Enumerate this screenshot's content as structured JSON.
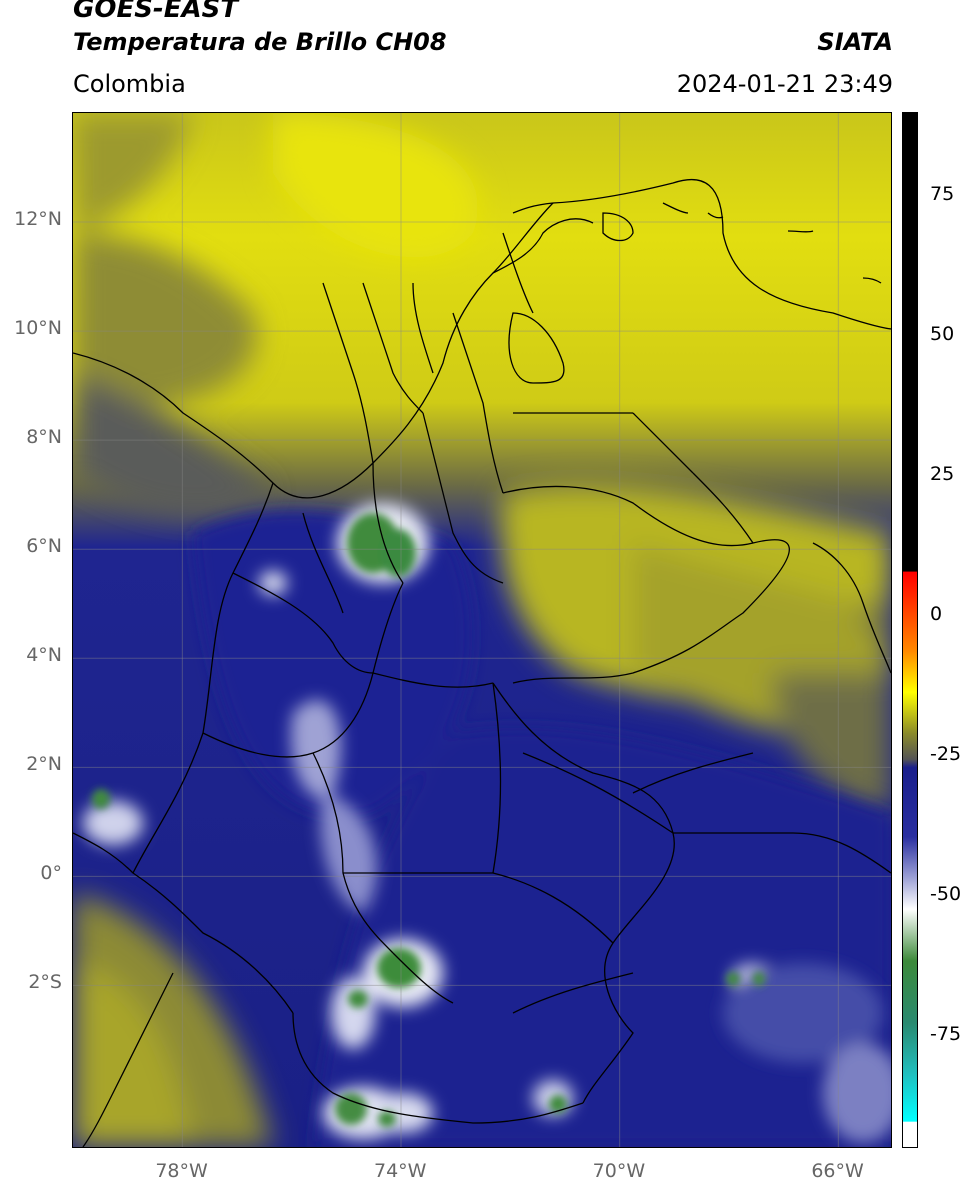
{
  "header": {
    "satellite": "GOES-EAST",
    "product": "Temperatura de Brillo CH08",
    "region": "Colombia",
    "agency": "SIATA",
    "datetime": "2024-01-21 23:49"
  },
  "map": {
    "lon_range": [
      -80,
      -65
    ],
    "lat_range": [
      -5,
      14
    ],
    "lat_ticks": [
      {
        "lat": 12,
        "label": "12°N"
      },
      {
        "lat": 10,
        "label": "10°N"
      },
      {
        "lat": 8,
        "label": "8°N"
      },
      {
        "lat": 6,
        "label": "6°N"
      },
      {
        "lat": 4,
        "label": "4°N"
      },
      {
        "lat": 2,
        "label": "2°N"
      },
      {
        "lat": 0,
        "label": "0°"
      },
      {
        "lat": -2,
        "label": "2°S"
      }
    ],
    "lon_ticks": [
      {
        "lon": -78,
        "label": "78°W"
      },
      {
        "lon": -74,
        "label": "74°W"
      },
      {
        "lon": -70,
        "label": "70°W"
      },
      {
        "lon": -66,
        "label": "66°W"
      }
    ],
    "colors": {
      "yellow": "#e4e00c",
      "olive": "#8a8a2a",
      "navy": "#1a1f8c",
      "white": "#ffffff",
      "green": "#3d8a3a"
    }
  },
  "colorbar": {
    "range": [
      -95,
      90
    ],
    "ticks": [
      {
        "value": 75,
        "label": "75"
      },
      {
        "value": 50,
        "label": "50"
      },
      {
        "value": 25,
        "label": "25"
      },
      {
        "value": 0,
        "label": "0"
      },
      {
        "value": -25,
        "label": "-25"
      },
      {
        "value": -50,
        "label": "-50"
      },
      {
        "value": -75,
        "label": "-75"
      }
    ]
  }
}
